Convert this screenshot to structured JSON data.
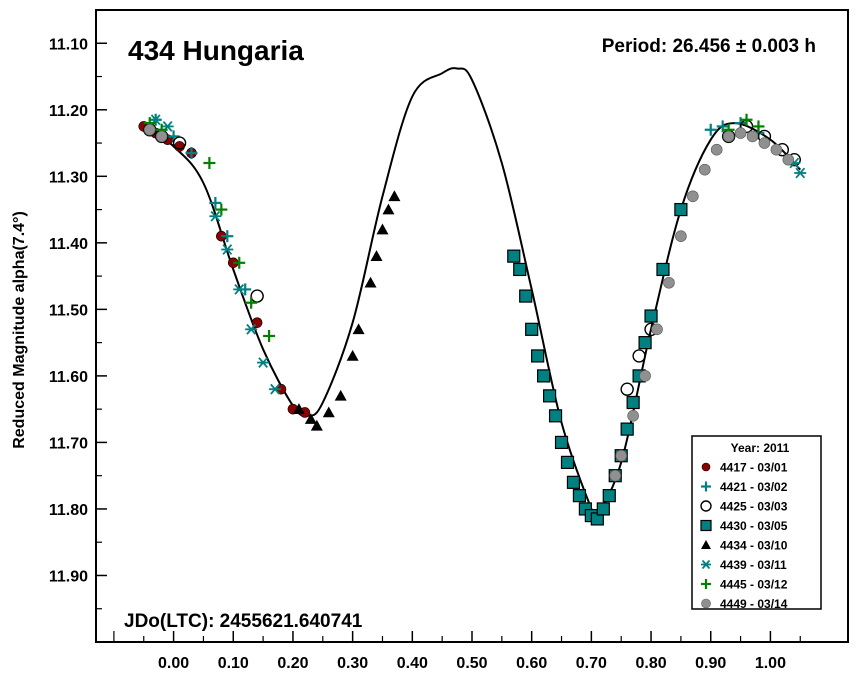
{
  "chart_data": {
    "type": "scatter",
    "title": "434 Hungaria",
    "period_label": "Period: 26.456 ± 0.003 h",
    "epoch_label": "JDo(LTC): 2455621.640741",
    "ylabel": "Reduced Magnitude alpha(7.4°)",
    "xlabel": "",
    "xlim": [
      -0.13,
      1.13
    ],
    "ylim": [
      11.05,
      12.0
    ],
    "y_inverted": true,
    "grid": false,
    "x_ticks": [
      {
        "value": 0.0,
        "label": "0.00"
      },
      {
        "value": 0.1,
        "label": "0.10"
      },
      {
        "value": 0.2,
        "label": "0.20"
      },
      {
        "value": 0.3,
        "label": "0.30"
      },
      {
        "value": 0.4,
        "label": "0.40"
      },
      {
        "value": 0.5,
        "label": "0.50"
      },
      {
        "value": 0.6,
        "label": "0.60"
      },
      {
        "value": 0.7,
        "label": "0.70"
      },
      {
        "value": 0.8,
        "label": "0.80"
      },
      {
        "value": 0.9,
        "label": "0.90"
      },
      {
        "value": 1.0,
        "label": "1.00"
      }
    ],
    "y_ticks": [
      {
        "value": 11.1,
        "label": "11.10"
      },
      {
        "value": 11.2,
        "label": "11.20"
      },
      {
        "value": 11.3,
        "label": "11.30"
      },
      {
        "value": 11.4,
        "label": "11.40"
      },
      {
        "value": 11.5,
        "label": "11.50"
      },
      {
        "value": 11.6,
        "label": "11.60"
      },
      {
        "value": 11.7,
        "label": "11.70"
      },
      {
        "value": 11.8,
        "label": "11.80"
      },
      {
        "value": 11.9,
        "label": "11.90"
      }
    ],
    "legend": {
      "title": "Year: 2011",
      "position": "bottom-right"
    },
    "fit_curve": {
      "color": "#000000",
      "x": [
        -0.05,
        0.0,
        0.05,
        0.1,
        0.15,
        0.2,
        0.225,
        0.25,
        0.3,
        0.35,
        0.4,
        0.45,
        0.475,
        0.5,
        0.55,
        0.6,
        0.65,
        0.7,
        0.71,
        0.75,
        0.8,
        0.85,
        0.9,
        0.94,
        1.0,
        1.05
      ],
      "y": [
        11.225,
        11.255,
        11.31,
        11.44,
        11.56,
        11.645,
        11.66,
        11.64,
        11.52,
        11.33,
        11.18,
        11.145,
        11.138,
        11.155,
        11.28,
        11.47,
        11.67,
        11.8,
        11.808,
        11.73,
        11.53,
        11.35,
        11.245,
        11.22,
        11.245,
        11.29
      ]
    },
    "series": [
      {
        "name": "4417 - 03/01",
        "marker": "circle",
        "color": "#8b0000",
        "x": [
          -0.05,
          -0.03,
          -0.01,
          0.01,
          0.03,
          0.08,
          0.1,
          0.14,
          0.18,
          0.2,
          0.22
        ],
        "y": [
          11.225,
          11.235,
          11.245,
          11.255,
          11.265,
          11.39,
          11.43,
          11.52,
          11.62,
          11.65,
          11.655
        ]
      },
      {
        "name": "4421 - 03/02",
        "marker": "plus",
        "color": "#008080",
        "x": [
          -0.03,
          0.0,
          0.03,
          0.07,
          0.09,
          0.12,
          0.9,
          0.92,
          0.95,
          0.98
        ],
        "y": [
          11.215,
          11.24,
          11.265,
          11.34,
          11.39,
          11.47,
          11.23,
          11.225,
          11.22,
          11.235
        ]
      },
      {
        "name": "4425 - 03/03",
        "marker": "circle-open",
        "color": "#000000",
        "x": [
          -0.04,
          -0.02,
          0.01,
          0.14,
          0.76,
          0.78,
          0.8,
          0.93,
          0.96,
          0.99,
          1.02,
          1.04
        ],
        "y": [
          11.23,
          11.24,
          11.25,
          11.48,
          11.62,
          11.57,
          11.53,
          11.24,
          11.225,
          11.24,
          11.26,
          11.275
        ]
      },
      {
        "name": "4430 - 03/05",
        "marker": "square",
        "color": "#008080",
        "x": [
          0.57,
          0.58,
          0.59,
          0.6,
          0.61,
          0.62,
          0.63,
          0.64,
          0.65,
          0.66,
          0.67,
          0.68,
          0.69,
          0.7,
          0.71,
          0.72,
          0.73,
          0.74,
          0.75,
          0.76,
          0.77,
          0.78,
          0.79,
          0.8,
          0.82,
          0.85
        ],
        "y": [
          11.42,
          11.44,
          11.48,
          11.53,
          11.57,
          11.6,
          11.63,
          11.66,
          11.7,
          11.73,
          11.76,
          11.78,
          11.8,
          11.81,
          11.815,
          11.8,
          11.78,
          11.75,
          11.72,
          11.68,
          11.64,
          11.6,
          11.55,
          11.51,
          11.44,
          11.35
        ]
      },
      {
        "name": "4434 - 03/10",
        "marker": "triangle",
        "color": "#000000",
        "x": [
          0.21,
          0.23,
          0.24,
          0.26,
          0.28,
          0.3,
          0.31,
          0.33,
          0.34,
          0.35,
          0.36,
          0.37
        ],
        "y": [
          11.65,
          11.665,
          11.675,
          11.655,
          11.63,
          11.57,
          11.53,
          11.46,
          11.42,
          11.38,
          11.35,
          11.33
        ]
      },
      {
        "name": "4439 - 03/11",
        "marker": "star",
        "color": "#008080",
        "x": [
          -0.03,
          -0.01,
          0.07,
          0.09,
          0.11,
          0.13,
          0.15,
          0.17,
          1.04,
          1.05
        ],
        "y": [
          11.215,
          11.225,
          11.36,
          11.41,
          11.47,
          11.53,
          11.58,
          11.62,
          11.28,
          11.295
        ]
      },
      {
        "name": "4445 - 03/12",
        "marker": "plus",
        "color": "#008000",
        "x": [
          -0.04,
          -0.02,
          0.06,
          0.08,
          0.11,
          0.13,
          0.16,
          0.93,
          0.96,
          0.98
        ],
        "y": [
          11.22,
          11.23,
          11.28,
          11.35,
          11.43,
          11.49,
          11.54,
          11.23,
          11.215,
          11.225
        ]
      },
      {
        "name": "4449 - 03/14",
        "marker": "circle-filled",
        "color": "#909090",
        "x": [
          -0.04,
          -0.02,
          0.74,
          0.75,
          0.77,
          0.79,
          0.81,
          0.83,
          0.85,
          0.87,
          0.89,
          0.91,
          0.93,
          0.95,
          0.97,
          0.99,
          1.01,
          1.03
        ],
        "y": [
          11.23,
          11.24,
          11.75,
          11.72,
          11.66,
          11.6,
          11.53,
          11.46,
          11.39,
          11.33,
          11.29,
          11.26,
          11.24,
          11.235,
          11.24,
          11.25,
          11.26,
          11.275
        ]
      }
    ]
  }
}
